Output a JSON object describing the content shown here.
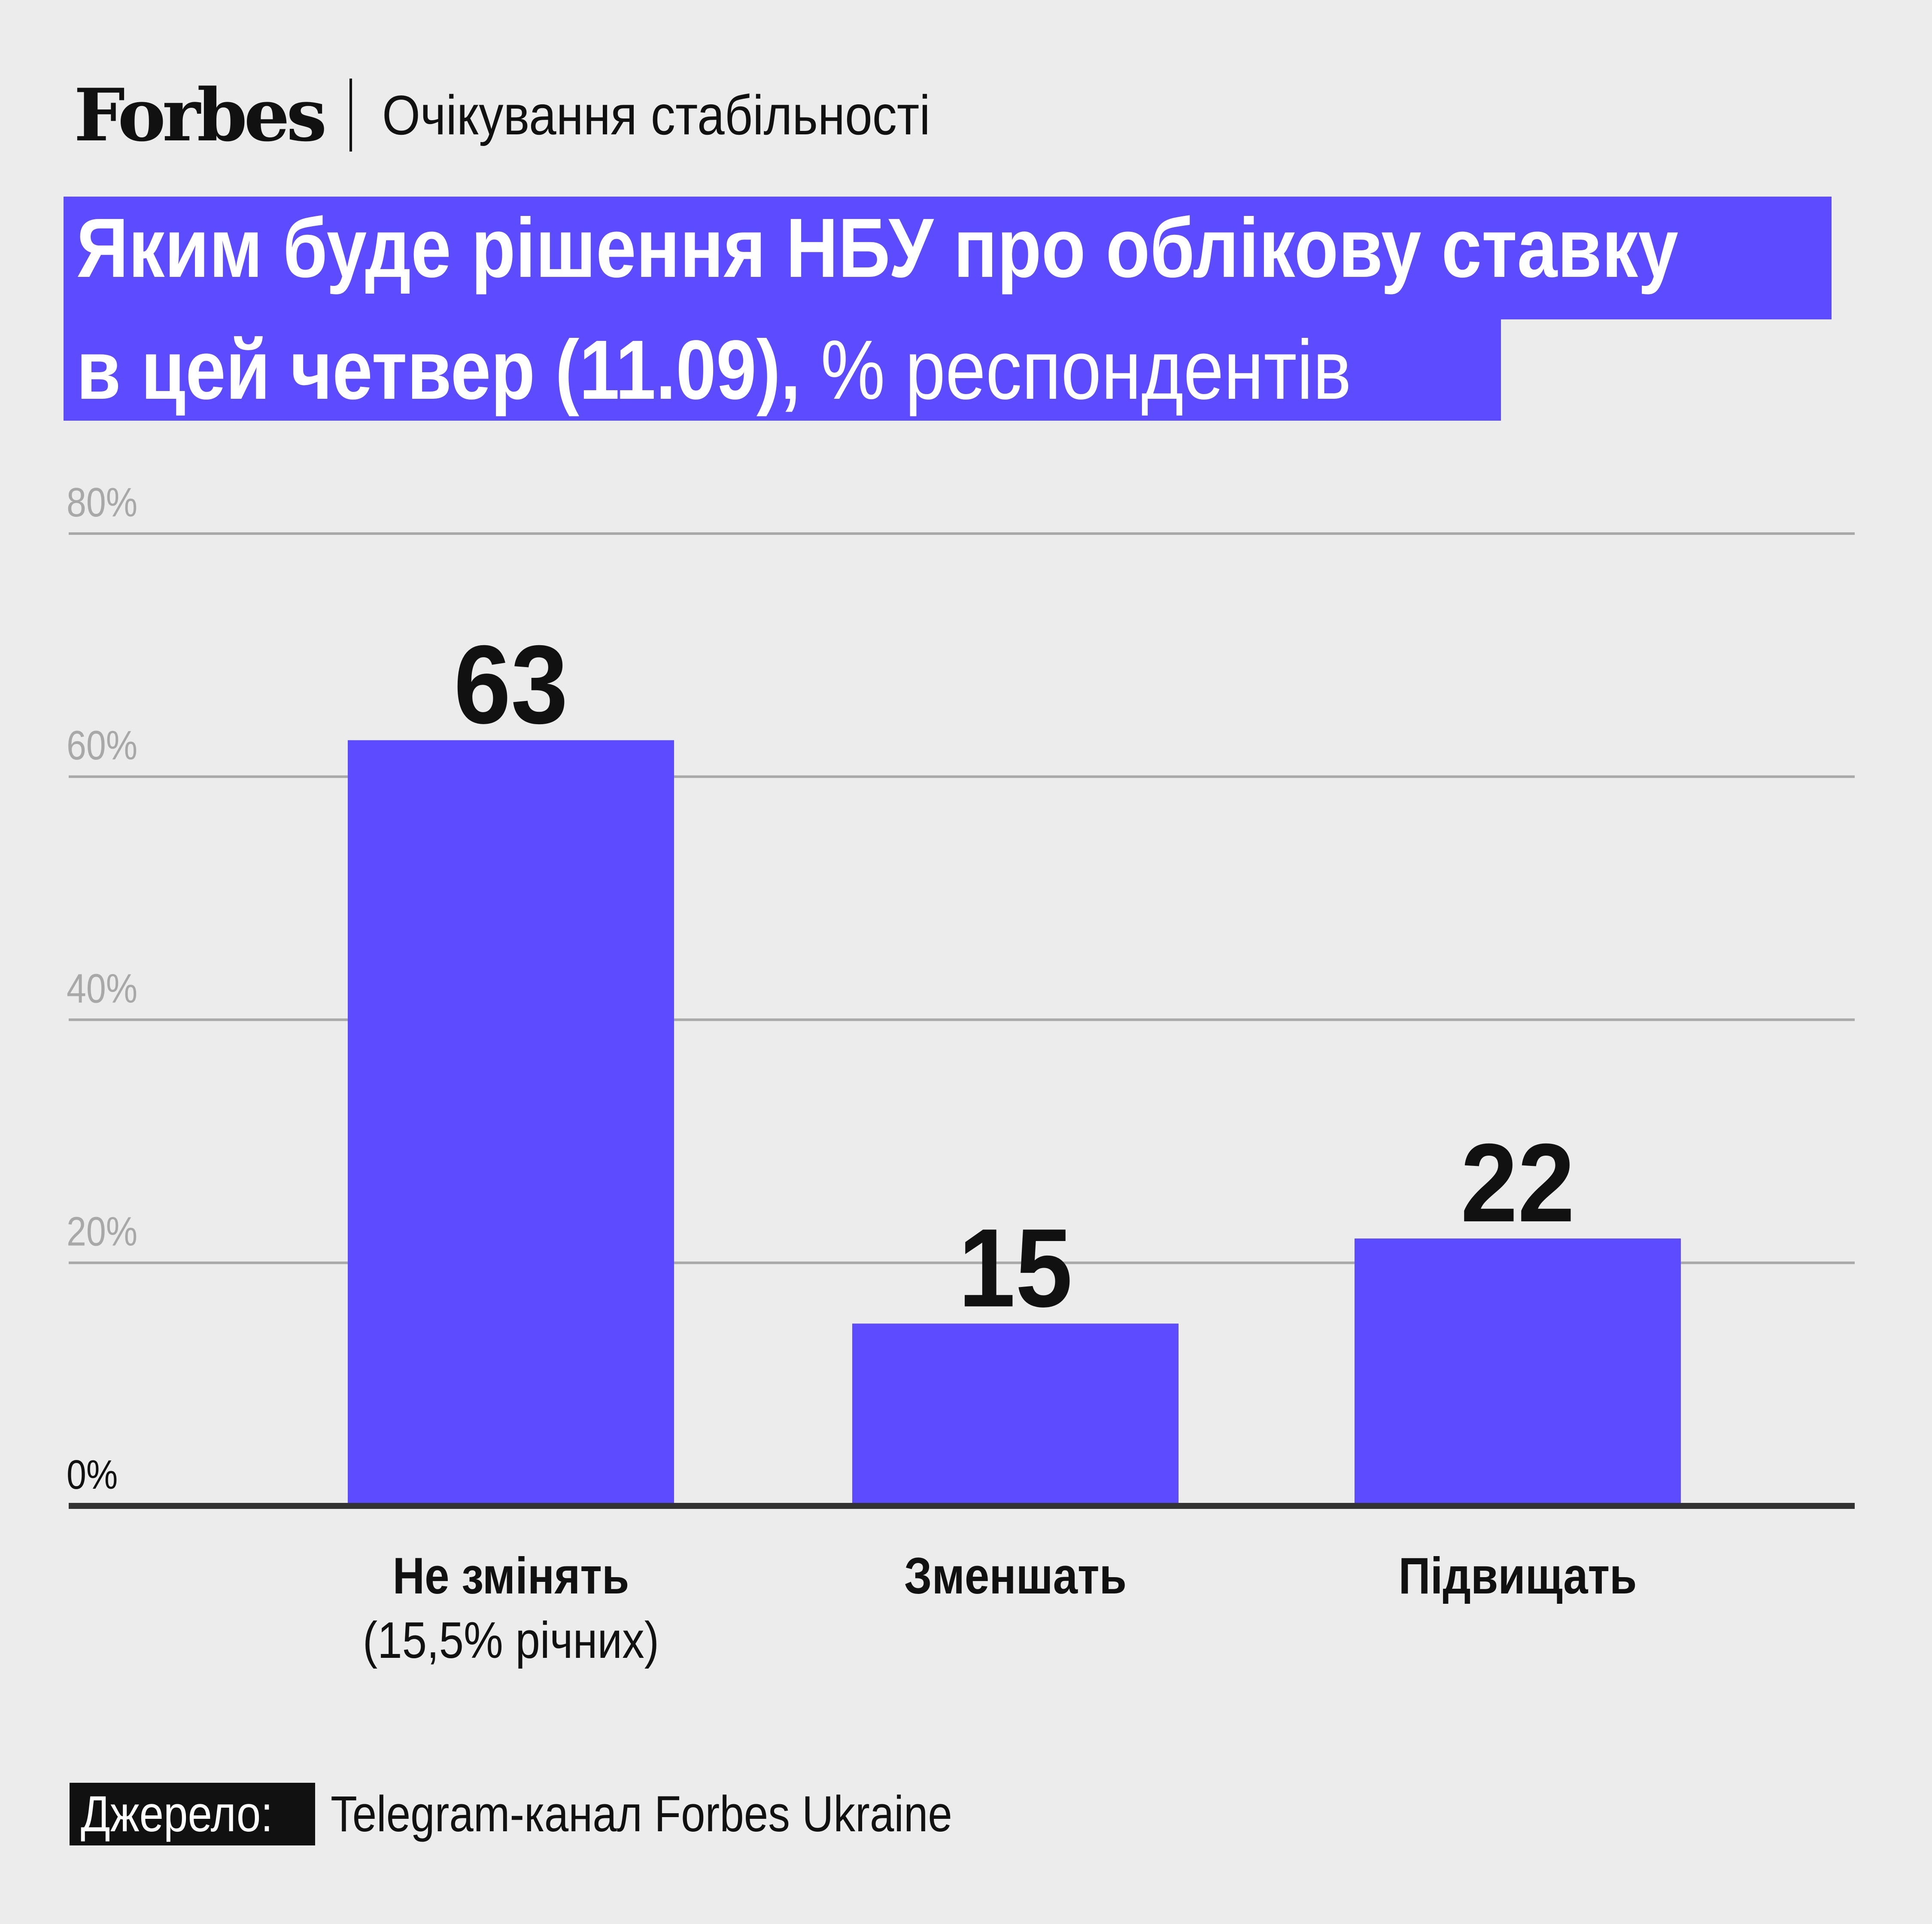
{
  "brand": {
    "logo": "Forbes",
    "section": "Очікування стабільності"
  },
  "title": {
    "line1": "Яким буде рішення НБУ про облікову ставку",
    "line2_bold": "в цей четвер (11.09),",
    "line2_light": " % респондентів"
  },
  "source": {
    "label": "Джерело:",
    "text": "Telegram-канал Forbes Ukraine"
  },
  "colors": {
    "bar": "#5c4bff",
    "grid": "#a9a9a9",
    "axis": "#333333",
    "tick_text": "#a8a8a8",
    "baseline_tick_text": "#111111"
  },
  "chart_data": {
    "type": "bar",
    "categories": [
      "Не змінять\n(15,5% річних)",
      "Зменшать",
      "Підвищать"
    ],
    "values": [
      63,
      15,
      22
    ],
    "value_labels": [
      "63",
      "15",
      "22"
    ],
    "ylim": [
      0,
      80
    ],
    "yticks": [
      0,
      20,
      40,
      60,
      80
    ],
    "ytick_labels": [
      "0%",
      "20%",
      "40%",
      "60%",
      "80%"
    ],
    "grid": true,
    "legend": "none"
  }
}
